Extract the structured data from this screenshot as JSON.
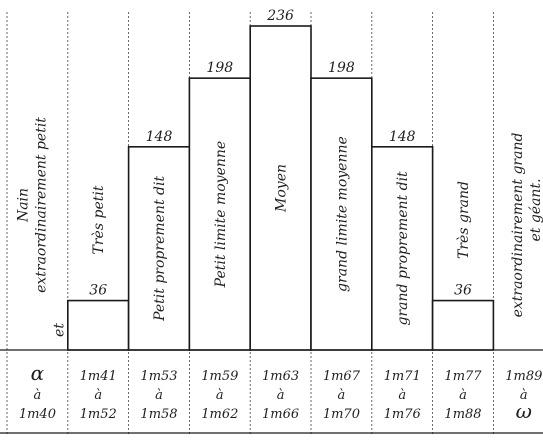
{
  "chart_data": {
    "type": "bar",
    "categories": [
      "Nain extraordinairement petit et",
      "Très petit",
      "Petit proprement dit",
      "Petit limite moyenne",
      "Moyen",
      "grand limite moyenne",
      "grand proprement dit",
      "Très grand",
      "extraordinairement grand et géant."
    ],
    "values": [
      null,
      36,
      148,
      198,
      236,
      198,
      148,
      36,
      null
    ],
    "value_labels": [
      "",
      "36",
      "148",
      "198",
      "236",
      "198",
      "148",
      "36",
      ""
    ],
    "ranges": [
      [
        "α",
        "à",
        "1m40"
      ],
      [
        "1m41",
        "à",
        "1m52"
      ],
      [
        "1m53",
        "à",
        "1m58"
      ],
      [
        "1m59",
        "à",
        "1m62"
      ],
      [
        "1m63",
        "à",
        "1m66"
      ],
      [
        "1m67",
        "à",
        "1m70"
      ],
      [
        "1m71",
        "à",
        "1m76"
      ],
      [
        "1m77",
        "à",
        "1m88"
      ],
      [
        "1m89",
        "à",
        "ω"
      ]
    ],
    "ylim": [
      0,
      236
    ],
    "title": "",
    "xlabel": "",
    "ylabel": ""
  }
}
